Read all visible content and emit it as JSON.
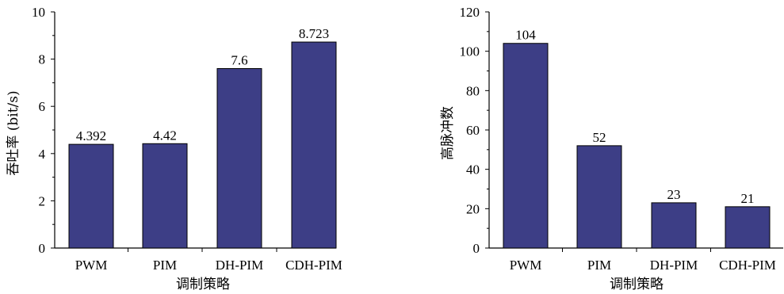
{
  "colors": {
    "bar_fill": "#3d3e86",
    "axis": "#000000",
    "background": "#ffffff"
  },
  "chart_data": [
    {
      "type": "bar",
      "categories": [
        "PWM",
        "PIM",
        "DH-PIM",
        "CDH-PIM"
      ],
      "values": [
        4.392,
        4.42,
        7.6,
        8.723
      ],
      "value_labels": [
        "4.392",
        "4.42",
        "7.6",
        "8.723"
      ],
      "xlabel": "调制策略",
      "ylabel": "吞吐率 (bit/s)",
      "ylim": [
        0,
        10
      ],
      "yticks": [
        0,
        2,
        4,
        6,
        8,
        10
      ],
      "grid": false,
      "legend": "none"
    },
    {
      "type": "bar",
      "categories": [
        "PWM",
        "PIM",
        "DH-PIM",
        "CDH-PIM"
      ],
      "values": [
        104,
        52,
        23,
        21
      ],
      "value_labels": [
        "104",
        "52",
        "23",
        "21"
      ],
      "xlabel": "调制策略",
      "ylabel": "高脉冲数",
      "ylim": [
        0,
        120
      ],
      "yticks": [
        0,
        20,
        40,
        60,
        80,
        100,
        120
      ],
      "grid": false,
      "legend": "none"
    }
  ]
}
